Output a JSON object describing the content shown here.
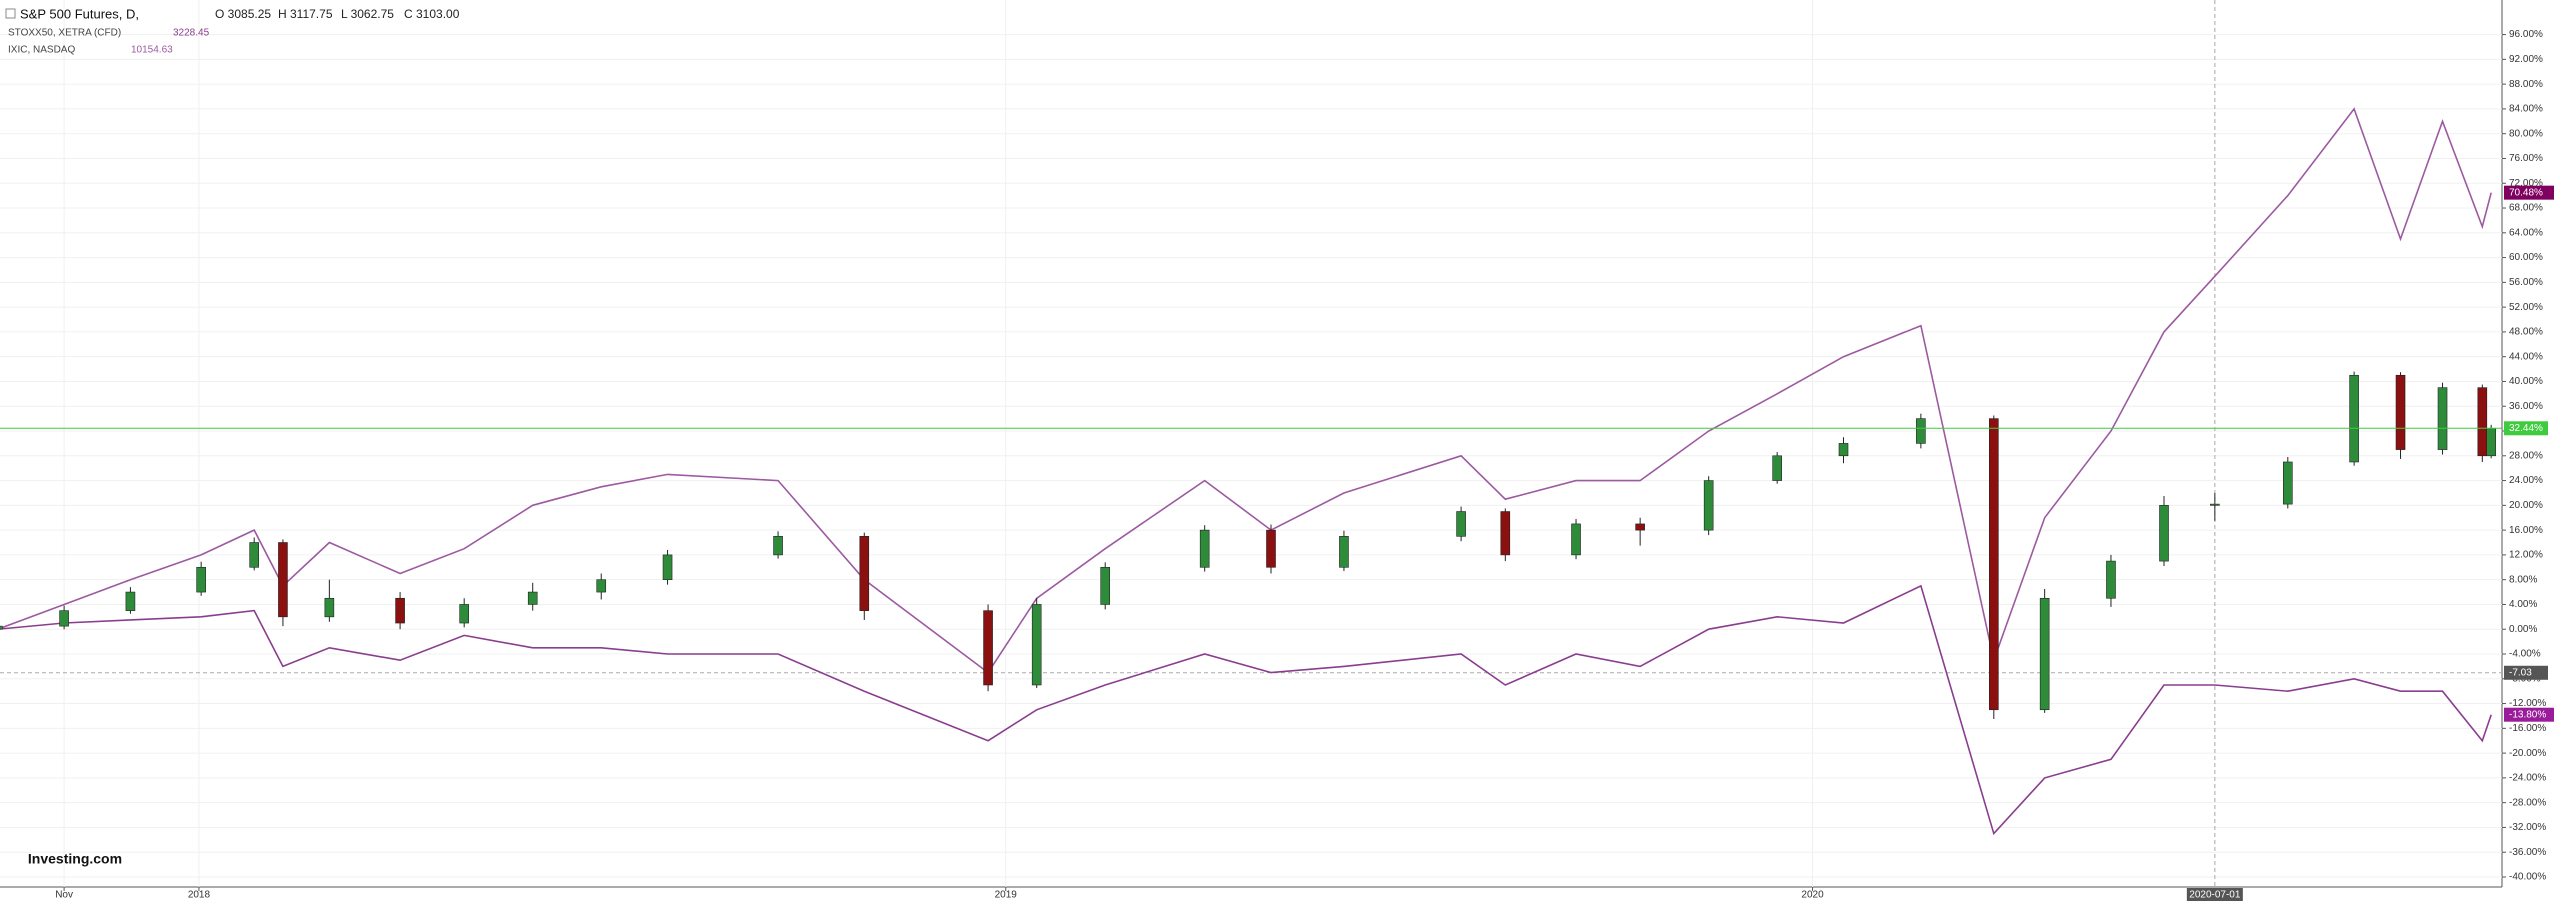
{
  "chart_data": {
    "type": "candlestick",
    "title": "S&P 500 Futures, D,",
    "ohlc_text": [
      "O 3085.25",
      "H 3117.75",
      "L 3062.75",
      "C 3103.00"
    ],
    "logo": "Investing.com",
    "x": [
      "2017-10-02",
      "2017-11-01",
      "2017-12-01",
      "2018-01-02",
      "2018-01-26",
      "2018-02-08",
      "2018-03-01",
      "2018-04-02",
      "2018-05-01",
      "2018-06-01",
      "2018-07-02",
      "2018-08-01",
      "2018-09-20",
      "2018-10-29",
      "2018-12-24",
      "2019-01-15",
      "2019-02-15",
      "2019-04-01",
      "2019-05-01",
      "2019-06-03",
      "2019-07-26",
      "2019-08-15",
      "2019-09-16",
      "2019-10-15",
      "2019-11-15",
      "2019-12-16",
      "2020-01-15",
      "2020-02-19",
      "2020-03-23",
      "2020-04-15",
      "2020-05-15",
      "2020-06-08",
      "2020-07-01",
      "2020-08-03",
      "2020-09-02",
      "2020-09-23",
      "2020-10-12",
      "2020-10-30",
      "2020-11-03"
    ],
    "candles": {
      "up_color": "#2e8b3a",
      "down_color": "#8b1010",
      "last_color": "#3ecc3e",
      "last_label": "32.44%",
      "open": [
        0,
        0.5,
        3,
        6,
        10,
        14,
        2,
        5,
        1,
        4,
        6,
        8,
        12,
        15,
        3,
        -9,
        4,
        10,
        16,
        10,
        15,
        19,
        12,
        17,
        16,
        24,
        28,
        30,
        34,
        -13,
        5,
        11,
        20,
        20.2,
        27,
        41,
        29,
        39,
        28
      ],
      "high": [
        1.2,
        3.8,
        6.8,
        10.9,
        14.8,
        14.5,
        8,
        6,
        5,
        7.5,
        9,
        12.8,
        15.8,
        15.6,
        4,
        5,
        10.8,
        16.8,
        16.9,
        15.9,
        19.8,
        19.5,
        17.8,
        18,
        24.7,
        28.6,
        31,
        34.8,
        34.5,
        6.5,
        12,
        21.5,
        22,
        27.8,
        41.6,
        41.5,
        39.8,
        39.5,
        33
      ],
      "low": [
        -0.8,
        0,
        2.5,
        5.4,
        9.5,
        0.5,
        1.2,
        0,
        0.3,
        3,
        4.8,
        7.2,
        11.4,
        1.5,
        -10,
        -9.5,
        3.2,
        9.3,
        9,
        9.4,
        14.2,
        11,
        11.3,
        13.5,
        15.2,
        23.5,
        26.8,
        29.2,
        -14.5,
        -13.5,
        3.6,
        10.2,
        17.5,
        19.5,
        26.4,
        27.5,
        28.2,
        27,
        27.6
      ],
      "close": [
        0.5,
        3,
        6,
        10,
        14,
        2,
        5,
        1,
        4,
        6,
        8,
        12,
        15,
        3,
        -9,
        4,
        10,
        16,
        10,
        15,
        19,
        12,
        17,
        16,
        24,
        28,
        30,
        34,
        -13,
        5,
        11,
        20,
        20.2,
        27,
        41,
        29,
        39,
        28,
        32.44
      ]
    },
    "series": [
      {
        "name": "IXIC, NASDAQ",
        "quote": "10154.63",
        "color": "#9c5aa0",
        "badge_color": "#800060",
        "last_label": "70.48%",
        "values": [
          0,
          4,
          8,
          12,
          16,
          7,
          14,
          9,
          13,
          20,
          23,
          25,
          24,
          8,
          -7,
          5,
          13,
          24,
          16,
          22,
          28,
          21,
          24,
          24,
          32,
          38,
          44,
          49,
          -5,
          18,
          32,
          48,
          57,
          70,
          84,
          63,
          82,
          65,
          70.48
        ]
      },
      {
        "name": "STOXX50, XETRA (CFD)",
        "quote": "3228.45",
        "color": "#8a3d8e",
        "badge_color": "#9b1c9b",
        "last_label": "-13.80%",
        "values": [
          0,
          1,
          1.5,
          2,
          3,
          -6,
          -3,
          -5,
          -1,
          -3,
          -3,
          -4,
          -4,
          -10,
          -18,
          -13,
          -9,
          -4,
          -7,
          -6,
          -4,
          -9,
          -4,
          -6,
          0,
          2,
          1,
          7,
          -33,
          -24,
          -21,
          -9,
          -9,
          -10,
          -8,
          -10,
          -10,
          -18,
          -13.8
        ]
      }
    ],
    "xlim": [
      "2017-10-03",
      "2020-11-07"
    ],
    "xticks": [
      {
        "value": "2017-11-01",
        "label": "Nov"
      },
      {
        "value": "2018-01-01",
        "label": "2018"
      },
      {
        "value": "2019-01-01",
        "label": "2019"
      },
      {
        "value": "2020-01-01",
        "label": "2020"
      }
    ],
    "crosshair": {
      "x": "2020-07-01",
      "y": -7.03
    },
    "ylim": [
      -41,
      98
    ],
    "yticks": [
      {
        "value": -40,
        "label": "-40.00%"
      },
      {
        "value": -36,
        "label": "-36.00%"
      },
      {
        "value": -32,
        "label": "-32.00%"
      },
      {
        "value": -28,
        "label": "-28.00%"
      },
      {
        "value": -24,
        "label": "-24.00%"
      },
      {
        "value": -20,
        "label": "-20.00%"
      },
      {
        "value": -16,
        "label": "-16.00%"
      },
      {
        "value": -12,
        "label": "-12.00%"
      },
      {
        "value": -8,
        "label": "-8.00%"
      },
      {
        "value": -4,
        "label": "-4.00%"
      },
      {
        "value": 0,
        "label": "0.00%"
      },
      {
        "value": 4,
        "label": "4.00%"
      },
      {
        "value": 8,
        "label": "8.00%"
      },
      {
        "value": 12,
        "label": "12.00%"
      },
      {
        "value": 16,
        "label": "16.00%"
      },
      {
        "value": 20,
        "label": "20.00%"
      },
      {
        "value": 24,
        "label": "24.00%"
      },
      {
        "value": 28,
        "label": "28.00%"
      },
      {
        "value": 32,
        "label": "32.00%"
      },
      {
        "value": 36,
        "label": "36.00%"
      },
      {
        "value": 40,
        "label": "40.00%"
      },
      {
        "value": 44,
        "label": "44.00%"
      },
      {
        "value": 48,
        "label": "48.00%"
      },
      {
        "value": 52,
        "label": "52.00%"
      },
      {
        "value": 56,
        "label": "56.00%"
      },
      {
        "value": 60,
        "label": "60.00%"
      },
      {
        "value": 64,
        "label": "64.00%"
      },
      {
        "value": 68,
        "label": "68.00%"
      },
      {
        "value": 72,
        "label": "72.00%"
      },
      {
        "value": 76,
        "label": "76.00%"
      },
      {
        "value": 80,
        "label": "80.00%"
      },
      {
        "value": 84,
        "label": "84.00%"
      },
      {
        "value": 88,
        "label": "88.00%"
      },
      {
        "value": 92,
        "label": "92.00%"
      },
      {
        "value": 96,
        "label": "96.00%"
      }
    ],
    "grid": true
  }
}
